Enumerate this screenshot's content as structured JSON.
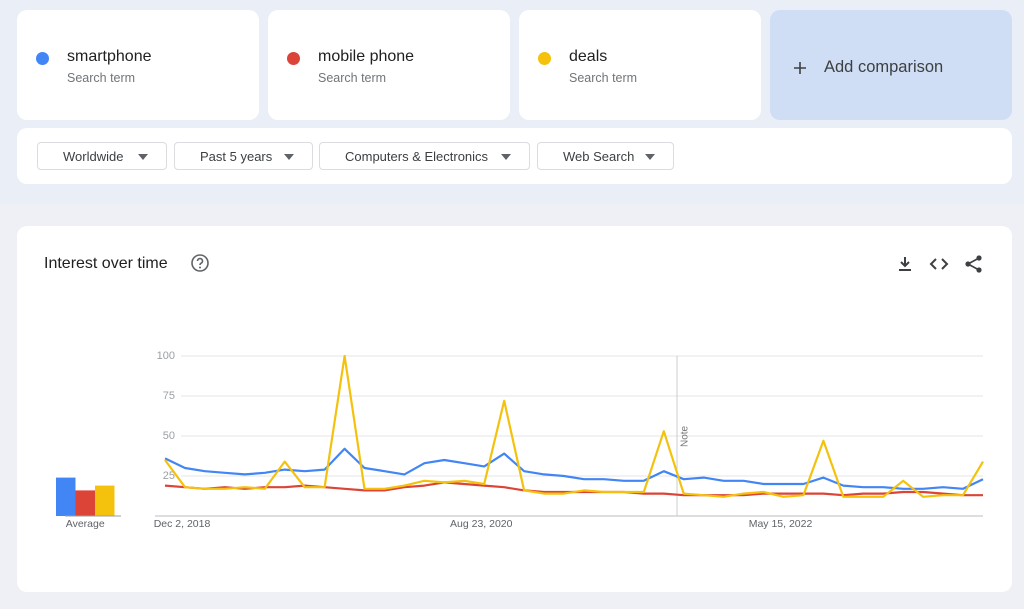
{
  "search_terms": [
    {
      "sublabel": "Search term"
    },
    {
      "sublabel": "Search term"
    },
    {
      "sublabel": "Search term"
    }
  ],
  "add_comparison": "Add comparison",
  "filters": [
    "Worldwide",
    "Past 5 years",
    "Computers & Electronics",
    "Web Search"
  ],
  "panel": {
    "title": "Interest over time"
  },
  "chart_data": [
    {
      "type": "line",
      "categories": [
        "Dec 2, 2018",
        null,
        null,
        null,
        null,
        null,
        null,
        null,
        null,
        null,
        null,
        null,
        null,
        null,
        null,
        "Aug 23, 2020",
        null,
        null,
        null,
        null,
        null,
        null,
        null,
        null,
        null,
        null,
        null,
        null,
        null,
        null,
        "May 15, 2022",
        null,
        null,
        null,
        null,
        null,
        null,
        null,
        null,
        null,
        null,
        null
      ],
      "series": [
        {
          "name": "smartphone",
          "color": "#4285f4",
          "values": [
            36,
            30,
            28,
            27,
            26,
            27,
            29,
            28,
            29,
            42,
            30,
            28,
            26,
            33,
            35,
            33,
            31,
            39,
            28,
            26,
            25,
            23,
            23,
            22,
            22,
            28,
            23,
            24,
            22,
            22,
            20,
            20,
            20,
            24,
            19,
            18,
            18,
            17,
            17,
            18,
            17,
            23
          ]
        },
        {
          "name": "mobile phone",
          "color": "#db4437",
          "values": [
            19,
            18,
            17,
            18,
            17,
            18,
            18,
            19,
            18,
            17,
            16,
            16,
            18,
            19,
            21,
            20,
            19,
            18,
            16,
            15,
            15,
            15,
            15,
            15,
            14,
            14,
            13,
            13,
            13,
            13,
            14,
            14,
            14,
            14,
            13,
            14,
            14,
            15,
            15,
            14,
            13,
            13
          ]
        },
        {
          "name": "deals",
          "color": "#f4c20d",
          "values": [
            35,
            18,
            17,
            17,
            18,
            17,
            34,
            18,
            18,
            100,
            17,
            17,
            19,
            22,
            21,
            22,
            20,
            72,
            16,
            14,
            14,
            16,
            15,
            15,
            15,
            53,
            14,
            13,
            12,
            14,
            15,
            12,
            13,
            47,
            12,
            12,
            12,
            22,
            12,
            13,
            13,
            34
          ]
        }
      ],
      "ylim": [
        0,
        100
      ],
      "yticks": [
        25,
        50,
        75,
        100
      ],
      "grid": true,
      "annotations": [
        "Note"
      ]
    },
    {
      "type": "bar",
      "categories": [
        "Average"
      ],
      "series": [
        {
          "color": "#4285f4",
          "values": [
            24
          ]
        },
        {
          "color": "#db4437",
          "values": [
            16
          ]
        },
        {
          "color": "#f4c20d",
          "values": [
            19
          ]
        }
      ],
      "ylim": [
        0,
        100
      ]
    }
  ]
}
